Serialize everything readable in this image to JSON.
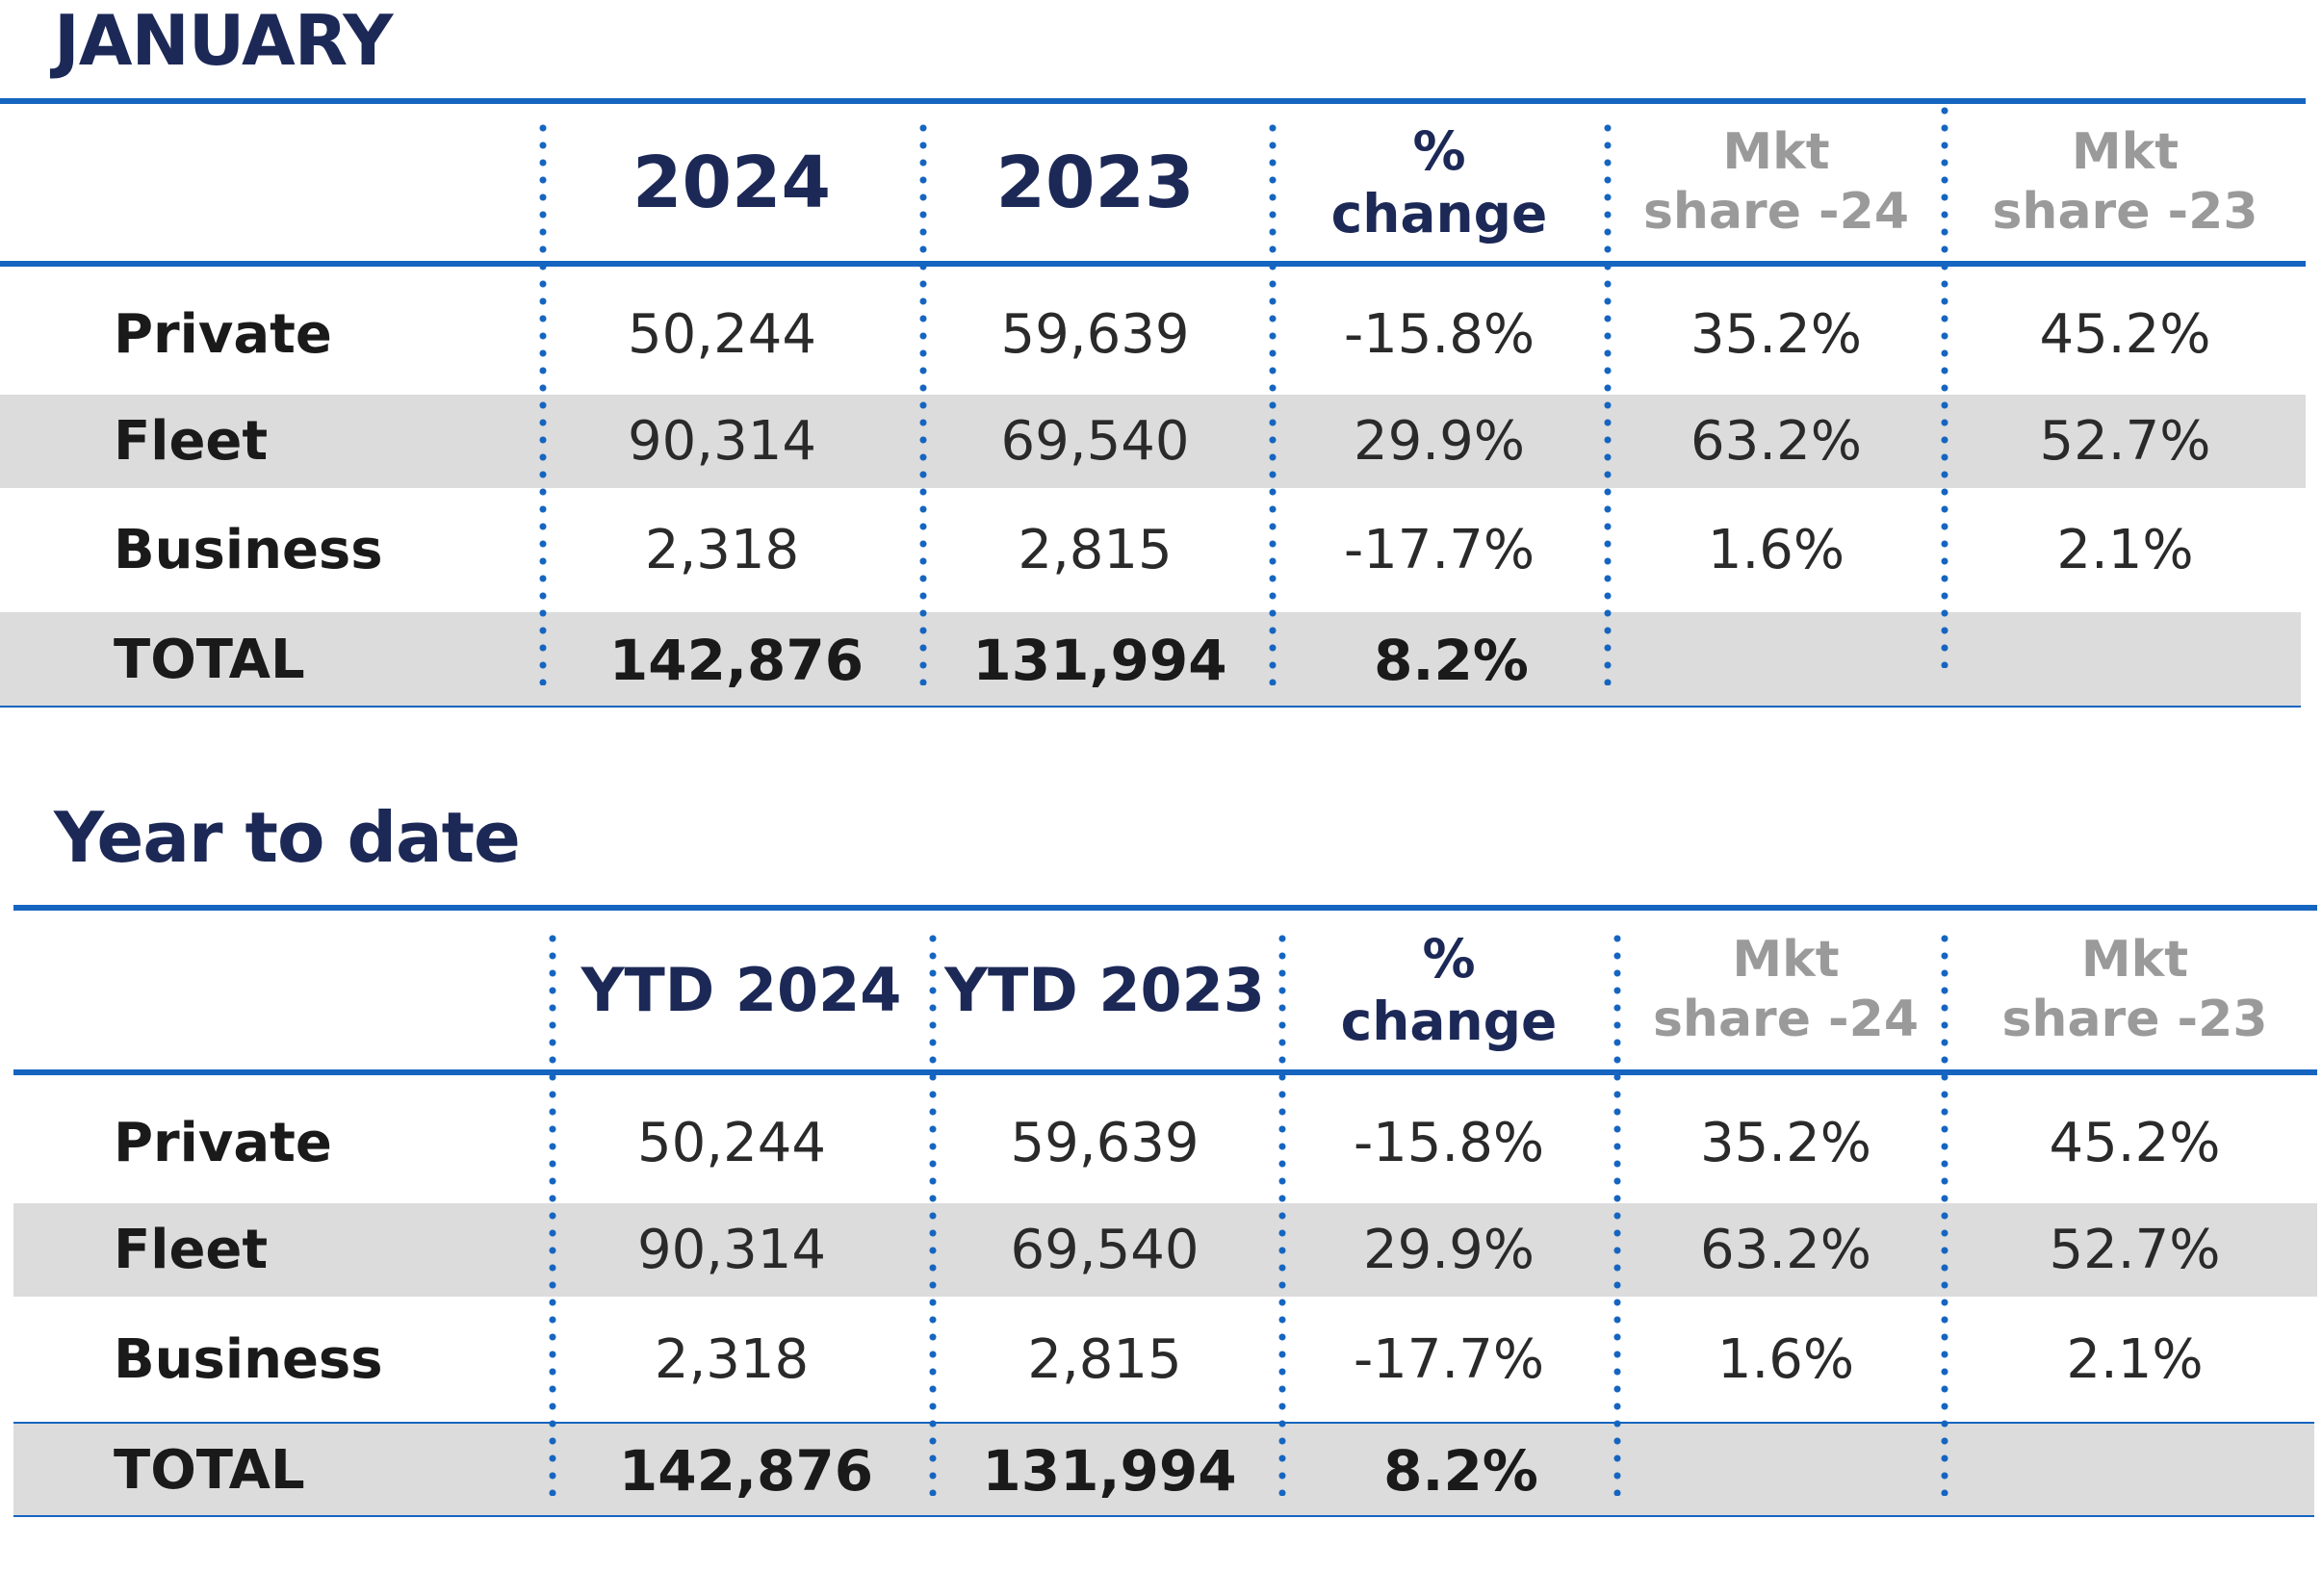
{
  "sections": [
    {
      "title": "JANUARY",
      "headers": {
        "col1": "2024",
        "col2": "2023",
        "change_line1": "%",
        "change_line2": "change",
        "mkt24_line1": "Mkt",
        "mkt24_line2": "share -24",
        "mkt23_line1": "Mkt",
        "mkt23_line2": "share -23"
      },
      "rows": [
        {
          "label": "Private",
          "v2024": "50,244",
          "v2023": "59,639",
          "change": "-15.8%",
          "mkt24": "35.2%",
          "mkt23": "45.2%"
        },
        {
          "label": "Fleet",
          "v2024": "90,314",
          "v2023": "69,540",
          "change": "29.9%",
          "mkt24": "63.2%",
          "mkt23": "52.7%"
        },
        {
          "label": "Business",
          "v2024": "2,318",
          "v2023": "2,815",
          "change": "-17.7%",
          "mkt24": "1.6%",
          "mkt23": "2.1%"
        }
      ],
      "total": {
        "label": "TOTAL",
        "v2024": "142,876",
        "v2023": "131,994",
        "change": "8.2%"
      }
    },
    {
      "title": "Year to date",
      "headers": {
        "col1": "YTD 2024",
        "col2": "YTD 2023",
        "change_line1": "%",
        "change_line2": "change",
        "mkt24_line1": "Mkt",
        "mkt24_line2": "share -24",
        "mkt23_line1": "Mkt",
        "mkt23_line2": "share -23"
      },
      "rows": [
        {
          "label": "Private",
          "v2024": "50,244",
          "v2023": "59,639",
          "change": "-15.8%",
          "mkt24": "35.2%",
          "mkt23": "45.2%"
        },
        {
          "label": "Fleet",
          "v2024": "90,314",
          "v2023": "69,540",
          "change": "29.9%",
          "mkt24": "63.2%",
          "mkt23": "52.7%"
        },
        {
          "label": "Business",
          "v2024": "2,318",
          "v2023": "2,815",
          "change": "-17.7%",
          "mkt24": "1.6%",
          "mkt23": "2.1%"
        }
      ],
      "total": {
        "label": "TOTAL",
        "v2024": "142,876",
        "v2023": "131,994",
        "change": "8.2%"
      }
    }
  ],
  "colors": {
    "navy": "#1c2957",
    "blue_rule": "#1565c0",
    "grey_header": "#9a9a9a",
    "row_shade": "#dcdcdc"
  }
}
